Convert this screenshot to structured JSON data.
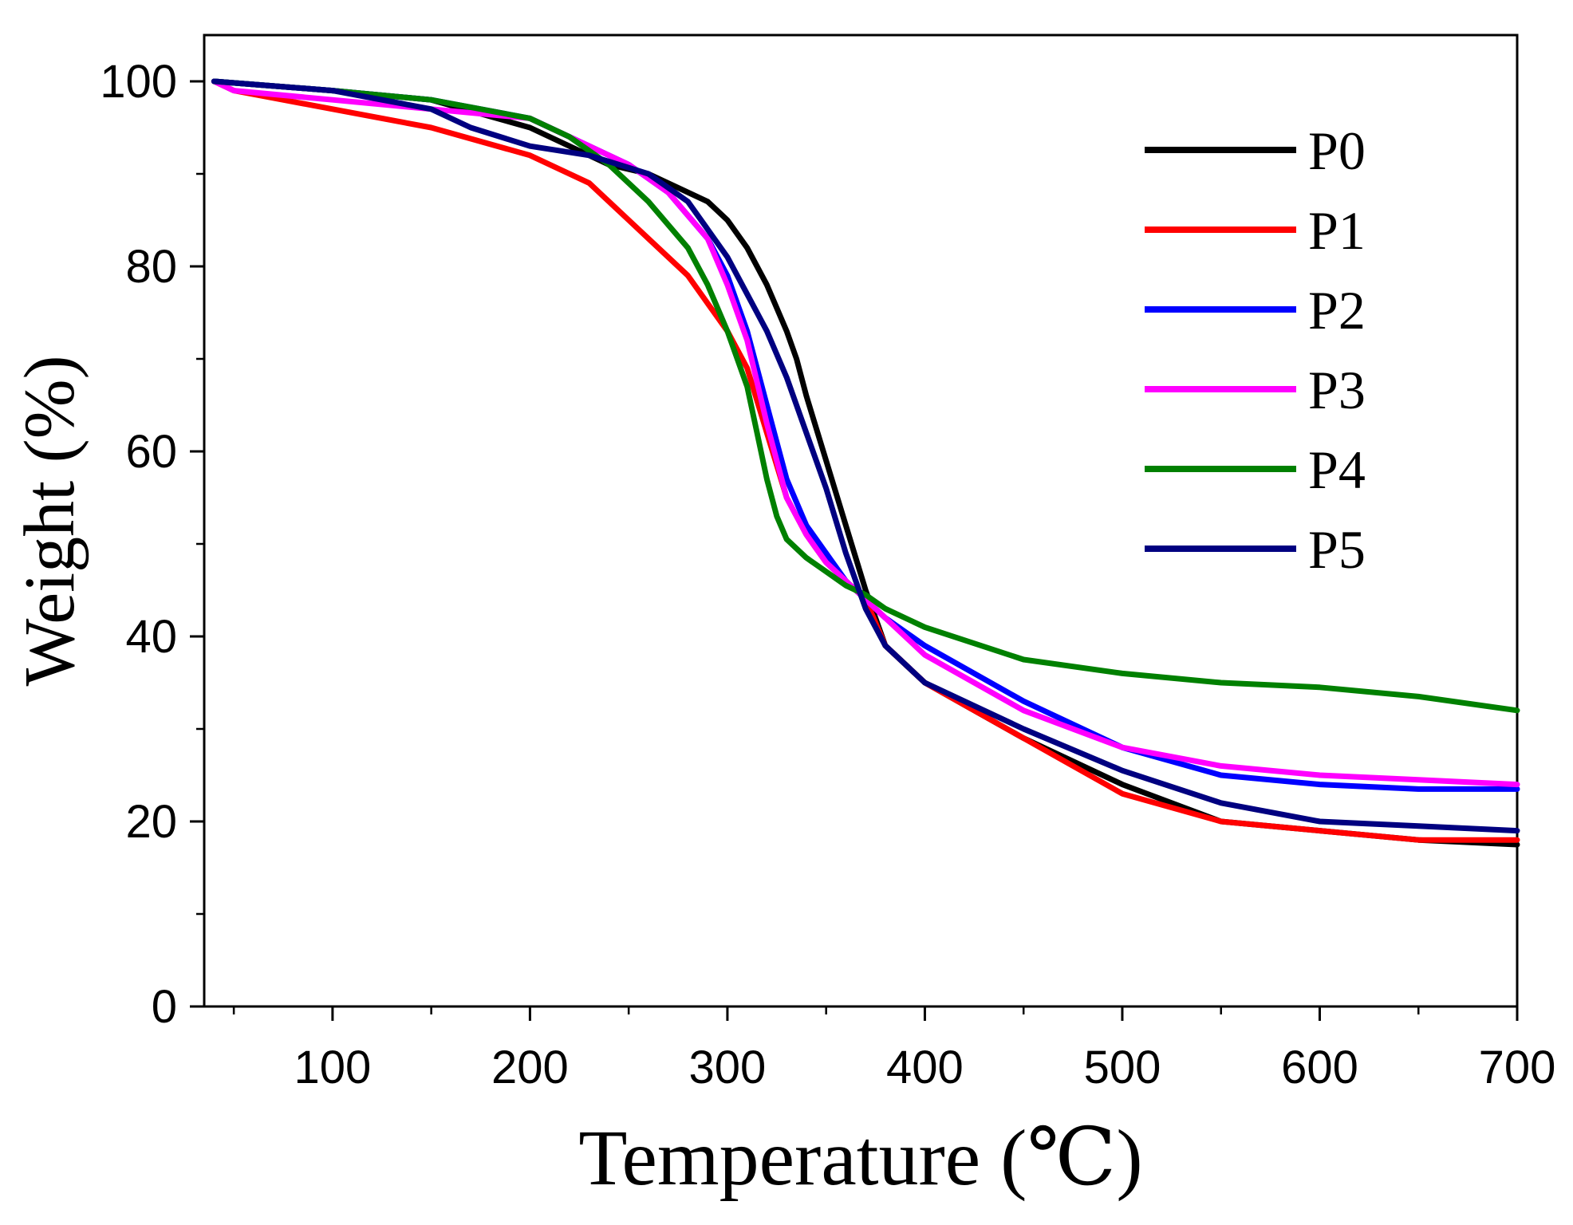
{
  "chart_data": {
    "type": "line",
    "title": "",
    "xlabel": "Temperature (℃)",
    "ylabel": "Weight (%)",
    "xlim": [
      35,
      700
    ],
    "ylim": [
      0,
      105
    ],
    "xticks": [
      100,
      200,
      300,
      400,
      500,
      600,
      700
    ],
    "xtick_labels": [
      "100",
      "200",
      "300",
      "400",
      "500",
      "600",
      "700"
    ],
    "xminor": [
      50,
      150,
      250,
      350,
      450,
      550,
      650
    ],
    "yticks": [
      0,
      20,
      40,
      60,
      80,
      100
    ],
    "ytick_labels": [
      "0",
      "20",
      "40",
      "60",
      "80",
      "100"
    ],
    "yminor": [
      10,
      30,
      50,
      70,
      90
    ],
    "grid": false,
    "legend_position": "top-right",
    "series": [
      {
        "name": "P0",
        "color": "#000000",
        "x": [
          40,
          100,
          150,
          200,
          240,
          260,
          280,
          290,
          300,
          310,
          320,
          330,
          335,
          340,
          350,
          360,
          370,
          380,
          400,
          450,
          500,
          550,
          600,
          650,
          700
        ],
        "y": [
          100,
          99,
          98,
          95,
          91,
          90,
          88,
          87,
          85,
          82,
          78,
          73,
          70,
          66,
          59,
          52,
          45,
          39,
          35,
          29,
          24,
          20,
          19,
          18,
          17.5
        ]
      },
      {
        "name": "P1",
        "color": "#ff0000",
        "x": [
          40,
          50,
          100,
          150,
          200,
          230,
          250,
          260,
          280,
          300,
          310,
          320,
          330,
          340,
          350,
          360,
          370,
          380,
          400,
          450,
          500,
          550,
          600,
          650,
          700
        ],
        "y": [
          100,
          99,
          97,
          95,
          92,
          89,
          85,
          83,
          79,
          73,
          69,
          62,
          55,
          51,
          48,
          46,
          44,
          39,
          35,
          29,
          23,
          20,
          19,
          18,
          18
        ]
      },
      {
        "name": "P2",
        "color": "#0000ff",
        "x": [
          40,
          100,
          150,
          200,
          230,
          250,
          270,
          290,
          300,
          310,
          320,
          330,
          340,
          350,
          360,
          370,
          380,
          400,
          450,
          500,
          550,
          600,
          650,
          700
        ],
        "y": [
          100,
          99,
          98,
          96,
          93,
          91,
          88,
          83,
          79,
          73,
          65,
          57,
          52,
          49,
          46,
          44,
          42,
          39,
          33,
          28,
          25,
          24,
          23.5,
          23.5
        ]
      },
      {
        "name": "P3",
        "color": "#ff00ff",
        "x": [
          40,
          50,
          100,
          150,
          200,
          230,
          250,
          270,
          290,
          300,
          310,
          320,
          330,
          340,
          350,
          360,
          370,
          380,
          400,
          450,
          500,
          550,
          600,
          650,
          700
        ],
        "y": [
          100,
          99,
          98,
          97,
          96,
          93,
          91,
          88,
          83,
          78,
          72,
          63,
          55,
          51,
          48,
          46,
          44,
          42,
          38,
          32,
          28,
          26,
          25,
          24.5,
          24
        ]
      },
      {
        "name": "P4",
        "color": "#008000",
        "x": [
          40,
          100,
          150,
          200,
          220,
          240,
          260,
          280,
          290,
          300,
          305,
          310,
          315,
          320,
          325,
          330,
          340,
          350,
          360,
          370,
          380,
          400,
          450,
          500,
          550,
          600,
          650,
          700
        ],
        "y": [
          100,
          99,
          98,
          96,
          94,
          91,
          87,
          82,
          78,
          73,
          70,
          67,
          62,
          57,
          53,
          50.5,
          48.5,
          47,
          45.5,
          44.5,
          43,
          41,
          37.5,
          36,
          35,
          34.5,
          33.5,
          32
        ]
      },
      {
        "name": "P5",
        "color": "#000080",
        "x": [
          40,
          100,
          150,
          170,
          200,
          230,
          260,
          270,
          280,
          290,
          300,
          310,
          320,
          330,
          340,
          350,
          360,
          370,
          380,
          400,
          450,
          500,
          550,
          600,
          650,
          700
        ],
        "y": [
          100,
          99,
          97,
          95,
          93,
          92,
          90,
          88.5,
          87,
          84,
          81,
          77,
          73,
          68,
          62,
          56,
          49,
          43,
          39,
          35,
          30,
          25.5,
          22,
          20,
          19.5,
          19
        ]
      }
    ]
  }
}
